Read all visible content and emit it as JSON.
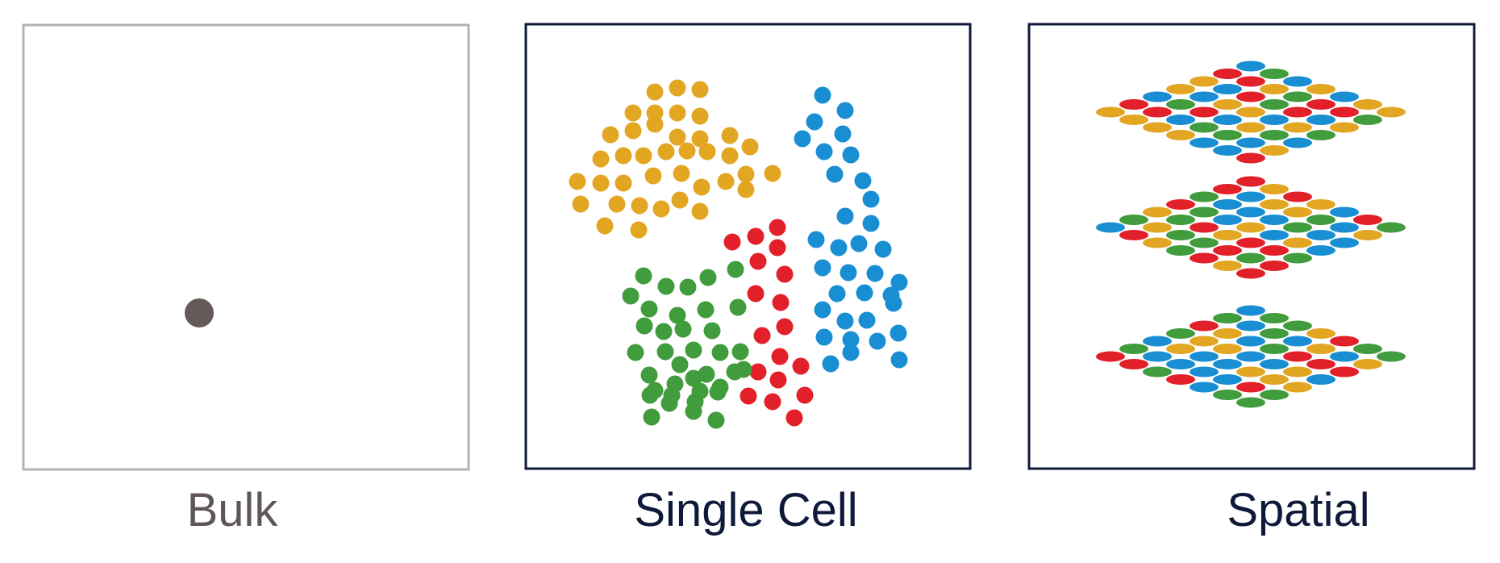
{
  "panels": [
    {
      "id": "bulk",
      "label": "Bulk",
      "label_color": "#5f5756",
      "border_color": "#b3b3b3"
    },
    {
      "id": "single-cell",
      "label": "Single Cell",
      "label_color": "#0f1a3a",
      "border_color": "#0f1a3a"
    },
    {
      "id": "spatial",
      "label": "Spatial",
      "label_color": "#0f1a3a",
      "border_color": "#0f1a3a"
    }
  ],
  "colors": {
    "bulk_dot": "#645a57",
    "yellow": "#e3a623",
    "blue": "#1a8ed3",
    "red": "#e2202a",
    "green": "#409c3c"
  }
}
